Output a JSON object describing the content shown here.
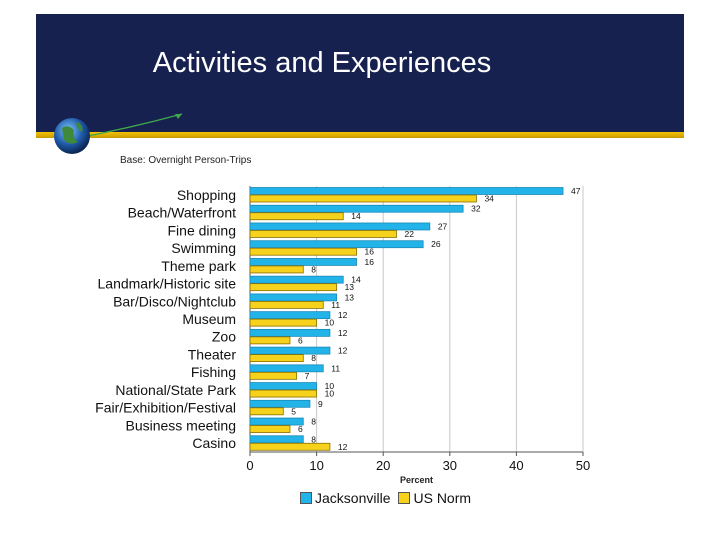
{
  "slide": {
    "title": "Activities and Experiences",
    "base_note": "Base: Overnight Person-Trips"
  },
  "colors": {
    "banner": "#17214f",
    "gold": "#f2c200",
    "jacksonville": "#22b4e8",
    "us_norm": "#f6d21c"
  },
  "chart_data": {
    "type": "bar",
    "orientation": "horizontal",
    "categories": [
      "Shopping",
      "Beach/Waterfront",
      "Fine dining",
      "Swimming",
      "Theme park",
      "Landmark/Historic site",
      "Bar/Disco/Nightclub",
      "Museum",
      "Zoo",
      "Theater",
      "Fishing",
      "National/State Park",
      "Fair/Exhibition/Festival",
      "Business meeting",
      "Casino"
    ],
    "series": [
      {
        "name": "Jacksonville",
        "values": [
          47,
          32,
          27,
          26,
          16,
          14,
          13,
          12,
          12,
          12,
          11,
          10,
          9,
          8,
          8
        ]
      },
      {
        "name": "US Norm",
        "values": [
          34,
          14,
          22,
          16,
          8,
          13,
          11,
          10,
          6,
          8,
          7,
          10,
          5,
          6,
          12
        ]
      }
    ],
    "xlabel": "Percent",
    "xlim": [
      0,
      50
    ],
    "xticks": [
      "0",
      "10",
      "20",
      "30",
      "40",
      "50"
    ],
    "grid": true,
    "legend": "bottom"
  }
}
